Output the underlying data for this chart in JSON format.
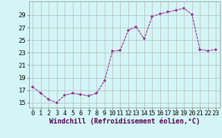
{
  "x": [
    0,
    1,
    2,
    3,
    4,
    5,
    6,
    7,
    8,
    9,
    10,
    11,
    12,
    13,
    14,
    15,
    16,
    17,
    18,
    19,
    20,
    21,
    22,
    23
  ],
  "y": [
    17.5,
    16.5,
    15.5,
    15.0,
    16.2,
    16.5,
    16.3,
    16.1,
    16.5,
    18.5,
    23.2,
    23.4,
    26.6,
    27.1,
    25.2,
    28.8,
    29.2,
    29.5,
    29.8,
    30.1,
    29.1,
    23.5,
    23.3,
    23.5
  ],
  "line_color": "#993399",
  "marker": "+",
  "marker_size": 3.5,
  "marker_lw": 1.2,
  "line_width": 0.9,
  "bg_color": "#d4f5f5",
  "grid_color": "#aaaaaa",
  "xlabel": "Windchill (Refroidissement éolien,°C)",
  "xlabel_fontsize": 7,
  "yticks": [
    15,
    17,
    19,
    21,
    23,
    25,
    27,
    29
  ],
  "ylim": [
    14.2,
    31.2
  ],
  "xlim": [
    -0.5,
    23.5
  ],
  "tick_fontsize": 6.5,
  "xtick_labels": [
    "0",
    "1",
    "2",
    "3",
    "4",
    "5",
    "6",
    "7",
    "8",
    "9",
    "10",
    "11",
    "12",
    "13",
    "14",
    "15",
    "16",
    "17",
    "18",
    "19",
    "20",
    "21",
    "22",
    "23"
  ]
}
